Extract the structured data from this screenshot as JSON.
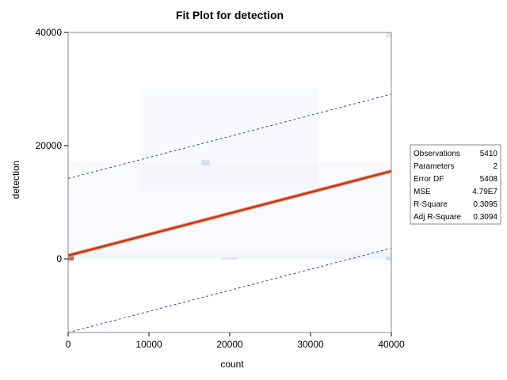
{
  "chart_data": {
    "type": "scatter",
    "title": "Fit Plot for detection",
    "xlabel": "count",
    "ylabel": "detection",
    "xlim": [
      0,
      40000
    ],
    "ylim": [
      -13000,
      40000
    ],
    "x_ticks": [
      0,
      10000,
      20000,
      30000,
      40000
    ],
    "y_ticks": [
      0,
      20000,
      40000
    ],
    "x_tick_labels": [
      "0",
      "10000",
      "20000",
      "30000",
      "40000"
    ],
    "y_tick_labels": [
      "0",
      "20000",
      "40000"
    ],
    "fit_line": {
      "x": [
        0,
        40000
      ],
      "y": [
        600,
        15500
      ]
    },
    "confidence_upper": {
      "x": [
        0,
        40000
      ],
      "y": [
        800,
        15700
      ]
    },
    "confidence_lower": {
      "x": [
        0,
        40000
      ],
      "y": [
        400,
        15300
      ]
    },
    "prediction_upper": {
      "x": [
        0,
        40000
      ],
      "y": [
        14200,
        29100
      ]
    },
    "prediction_lower": {
      "x": [
        0,
        40000
      ],
      "y": [
        -13000,
        1900
      ]
    },
    "grid": false,
    "legend": "none",
    "stats": [
      {
        "label": "Observations",
        "value": "5410"
      },
      {
        "label": "Parameters",
        "value": "2"
      },
      {
        "label": "Error DF",
        "value": "5408"
      },
      {
        "label": "MSE",
        "value": "4.79E7"
      },
      {
        "label": "R-Square",
        "value": "0.3095"
      },
      {
        "label": "Adj R-Square",
        "value": "0.3094"
      }
    ],
    "colors": {
      "fit": "#cc3311",
      "confidence": "#e8a890",
      "prediction": "#3344aa",
      "density_light": "#eef1f8",
      "density_mid": "#d6dced",
      "density_hot": "#cc5555"
    }
  }
}
